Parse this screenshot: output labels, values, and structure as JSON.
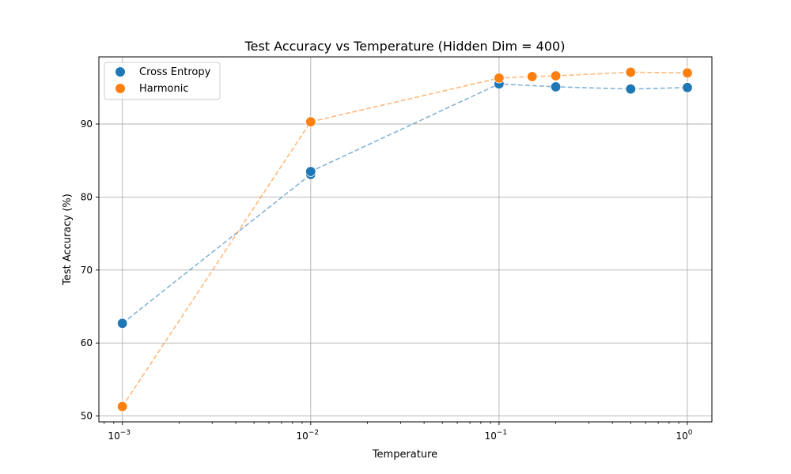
{
  "chart_data": {
    "type": "scatter",
    "title": "Test Accuracy vs Temperature (Hidden Dim = 400)",
    "xlabel": "Temperature",
    "ylabel": "Test Accuracy (%)",
    "xscale": "log",
    "xlim": [
      0.00075,
      1.35
    ],
    "ylim": [
      49.2,
      99.2
    ],
    "x_ticks": [
      {
        "value": 0.001,
        "base": "10",
        "exp": "−3"
      },
      {
        "value": 0.01,
        "base": "10",
        "exp": "−2"
      },
      {
        "value": 0.1,
        "base": "10",
        "exp": "−1"
      },
      {
        "value": 1,
        "base": "10",
        "exp": "0"
      }
    ],
    "y_ticks": [
      50,
      60,
      70,
      80,
      90
    ],
    "grid": true,
    "legend_position": "top-left",
    "series": [
      {
        "name": "Cross Entropy",
        "color": "#1f77b4",
        "x": [
          0.001,
          0.01,
          0.01,
          0.1,
          0.2,
          0.5,
          1.0
        ],
        "y": [
          62.7,
          83.1,
          83.5,
          95.5,
          95.1,
          94.8,
          95.0
        ]
      },
      {
        "name": "Harmonic",
        "color": "#ff7f0e",
        "x": [
          0.001,
          0.01,
          0.1,
          0.15,
          0.2,
          0.5,
          1.0
        ],
        "y": [
          51.3,
          90.3,
          96.3,
          96.5,
          96.6,
          97.1,
          97.0
        ]
      }
    ]
  }
}
